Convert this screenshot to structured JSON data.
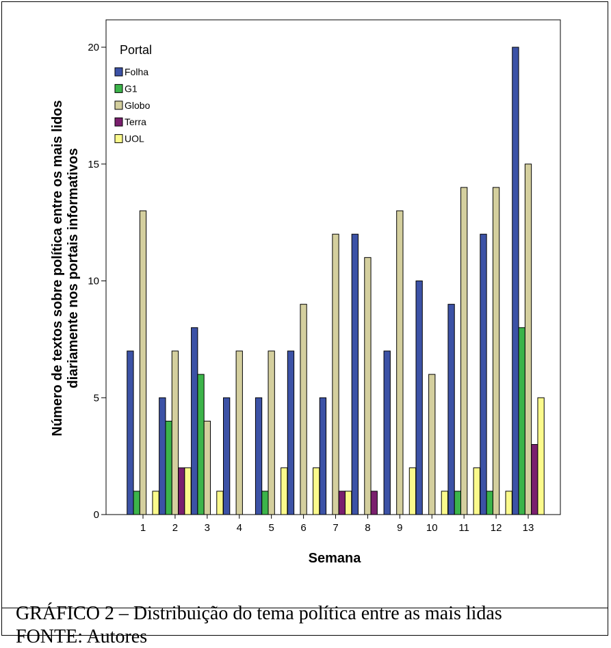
{
  "chart_data": {
    "type": "bar",
    "xlabel": "Semana",
    "ylabel": [
      "Número de textos sobre política entre os mais lidos",
      "diariamente nos portais informativos"
    ],
    "ylim": [
      0,
      22
    ],
    "yticks": [
      0,
      5,
      10,
      15,
      20
    ],
    "categories": [
      "1",
      "2",
      "3",
      "4",
      "5",
      "6",
      "7",
      "8",
      "9",
      "10",
      "11",
      "12",
      "13"
    ],
    "legend": {
      "title": "Portal",
      "position": "top-left"
    },
    "series": [
      {
        "name": "Folha",
        "color": "#3c52a6",
        "values": [
          7,
          5,
          8,
          5,
          5,
          7,
          5,
          12,
          7,
          10,
          9,
          12,
          20
        ]
      },
      {
        "name": "G1",
        "color": "#3cb44a",
        "values": [
          1,
          4,
          6,
          0,
          1,
          0,
          0,
          0,
          0,
          0,
          1,
          1,
          8
        ]
      },
      {
        "name": "Globo",
        "color": "#d4cf9e",
        "values": [
          13,
          7,
          4,
          7,
          7,
          9,
          12,
          11,
          13,
          6,
          14,
          14,
          15
        ]
      },
      {
        "name": "Terra",
        "color": "#7a1f6e",
        "values": [
          0,
          2,
          0,
          0,
          0,
          0,
          1,
          1,
          0,
          0,
          0,
          0,
          3
        ]
      },
      {
        "name": "UOL",
        "color": "#fbfa8c",
        "values": [
          1,
          2,
          1,
          0,
          2,
          2,
          1,
          0,
          2,
          1,
          2,
          1,
          5
        ]
      }
    ]
  },
  "caption": {
    "title": "GRÁFICO 2 – Distribuição do tema política entre as mais lidas",
    "source": "FONTE: Autores"
  }
}
